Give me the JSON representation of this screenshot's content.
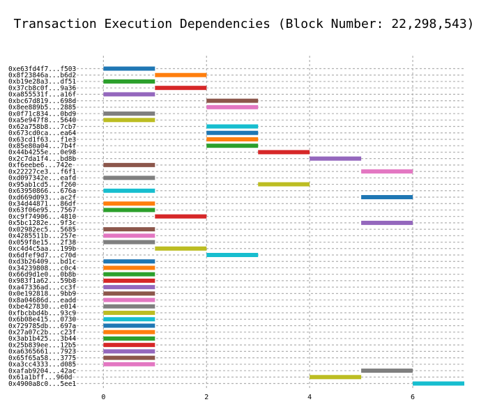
{
  "chart_data": {
    "type": "bar",
    "orientation": "horizontal-gantt",
    "title": "Transaction Execution Dependencies (Block Number: 22,298,543)",
    "xlabel": "",
    "ylabel": "",
    "xlim": [
      -0.6,
      7.0
    ],
    "xticks": [
      0,
      2,
      4,
      6
    ],
    "grid": true,
    "legend": "none",
    "bars": [
      {
        "label": "0xe63fd4f7...f503",
        "start": 0,
        "end": 1,
        "color": "#1f77b4"
      },
      {
        "label": "0x8f23846a...b6d2",
        "start": 1,
        "end": 2,
        "color": "#ff7f0e"
      },
      {
        "label": "0xb19e28a3...df51",
        "start": 0,
        "end": 1,
        "color": "#2ca02c"
      },
      {
        "label": "0x37cb8c0f...9a36",
        "start": 1,
        "end": 2,
        "color": "#d62728"
      },
      {
        "label": "0xa855531f...a16f",
        "start": 0,
        "end": 1,
        "color": "#9467bd"
      },
      {
        "label": "0xbc67d819...698d",
        "start": 2,
        "end": 3,
        "color": "#8c564b"
      },
      {
        "label": "0x8ee889b5...2885",
        "start": 2,
        "end": 3,
        "color": "#e377c2"
      },
      {
        "label": "0x0f71c834...0bd9",
        "start": 0,
        "end": 1,
        "color": "#7f7f7f"
      },
      {
        "label": "0xa5e947f8...5640",
        "start": 0,
        "end": 1,
        "color": "#bcbd22"
      },
      {
        "label": "0x62a758b8...7cb7",
        "start": 2,
        "end": 3,
        "color": "#17becf"
      },
      {
        "label": "0x673cd0ca...ea64",
        "start": 2,
        "end": 3,
        "color": "#1f77b4"
      },
      {
        "label": "0x63cd1f63...f1e3",
        "start": 2,
        "end": 3,
        "color": "#ff7f0e"
      },
      {
        "label": "0x85e80a04...7b4f",
        "start": 2,
        "end": 3,
        "color": "#2ca02c"
      },
      {
        "label": "0x44b4255e...0e98",
        "start": 3,
        "end": 4,
        "color": "#d62728"
      },
      {
        "label": "0x2c7da1f4...bd8b",
        "start": 4,
        "end": 5,
        "color": "#9467bd"
      },
      {
        "label": "0xf6eebe6...742e",
        "start": 0,
        "end": 1,
        "color": "#8c564b"
      },
      {
        "label": "0x22227ce3...f6f1",
        "start": 5,
        "end": 6,
        "color": "#e377c2"
      },
      {
        "label": "0xd097342e...eafd",
        "start": 0,
        "end": 1,
        "color": "#7f7f7f"
      },
      {
        "label": "0x95ab1cd5...f260",
        "start": 3,
        "end": 4,
        "color": "#bcbd22"
      },
      {
        "label": "0x63950866...676a",
        "start": 0,
        "end": 1,
        "color": "#17becf"
      },
      {
        "label": "0xd669d093...ac2f",
        "start": 5,
        "end": 6,
        "color": "#1f77b4"
      },
      {
        "label": "0x34d44871...86df",
        "start": 0,
        "end": 1,
        "color": "#ff7f0e"
      },
      {
        "label": "0x63f06e95...7567",
        "start": 0,
        "end": 1,
        "color": "#2ca02c"
      },
      {
        "label": "0xc9f74906...4810",
        "start": 1,
        "end": 2,
        "color": "#d62728"
      },
      {
        "label": "0x5bc1282e...9f3c",
        "start": 5,
        "end": 6,
        "color": "#9467bd"
      },
      {
        "label": "0x02982ec5...5685",
        "start": 0,
        "end": 1,
        "color": "#8c564b"
      },
      {
        "label": "0x4285511b...257e",
        "start": 0,
        "end": 1,
        "color": "#e377c2"
      },
      {
        "label": "0x059f8e15...2f38",
        "start": 0,
        "end": 1,
        "color": "#7f7f7f"
      },
      {
        "label": "0xc4d4c5aa...199b",
        "start": 1,
        "end": 2,
        "color": "#bcbd22"
      },
      {
        "label": "0x6dfef9d7...c70d",
        "start": 2,
        "end": 3,
        "color": "#17becf"
      },
      {
        "label": "0xd3b26409...bd1c",
        "start": 0,
        "end": 1,
        "color": "#1f77b4"
      },
      {
        "label": "0x34239808...c0c4",
        "start": 0,
        "end": 1,
        "color": "#ff7f0e"
      },
      {
        "label": "0x66d9d1e0...0b8b",
        "start": 0,
        "end": 1,
        "color": "#2ca02c"
      },
      {
        "label": "0x983f1a62...59b8",
        "start": 0,
        "end": 1,
        "color": "#d62728"
      },
      {
        "label": "0xa47336ad...cc3f",
        "start": 0,
        "end": 1,
        "color": "#9467bd"
      },
      {
        "label": "0x0e192818...9bb9",
        "start": 0,
        "end": 1,
        "color": "#8c564b"
      },
      {
        "label": "0x8a04686d...eadd",
        "start": 0,
        "end": 1,
        "color": "#e377c2"
      },
      {
        "label": "0xbe427830...e014",
        "start": 0,
        "end": 1,
        "color": "#7f7f7f"
      },
      {
        "label": "0xfbcbbd4b...93c9",
        "start": 0,
        "end": 1,
        "color": "#bcbd22"
      },
      {
        "label": "0x6b08e415...0730",
        "start": 0,
        "end": 1,
        "color": "#17becf"
      },
      {
        "label": "0x729785db...697a",
        "start": 0,
        "end": 1,
        "color": "#1f77b4"
      },
      {
        "label": "0x27a07c2b...c23f",
        "start": 0,
        "end": 1,
        "color": "#ff7f0e"
      },
      {
        "label": "0x3ab1b425...3b44",
        "start": 0,
        "end": 1,
        "color": "#2ca02c"
      },
      {
        "label": "0x25b839ee...12b5",
        "start": 0,
        "end": 1,
        "color": "#d62728"
      },
      {
        "label": "0xa6365661...7923",
        "start": 0,
        "end": 1,
        "color": "#9467bd"
      },
      {
        "label": "0x65f65a58...3775",
        "start": 0,
        "end": 1,
        "color": "#8c564b"
      },
      {
        "label": "0xa3cc4333...d085",
        "start": 0,
        "end": 1,
        "color": "#e377c2"
      },
      {
        "label": "0xafab9204...42ac",
        "start": 5,
        "end": 6,
        "color": "#7f7f7f"
      },
      {
        "label": "0x61a1bff...960d",
        "start": 4,
        "end": 5,
        "color": "#bcbd22"
      },
      {
        "label": "0x4900a8c0...5ee1",
        "start": 6,
        "end": 7,
        "color": "#17becf"
      }
    ]
  }
}
